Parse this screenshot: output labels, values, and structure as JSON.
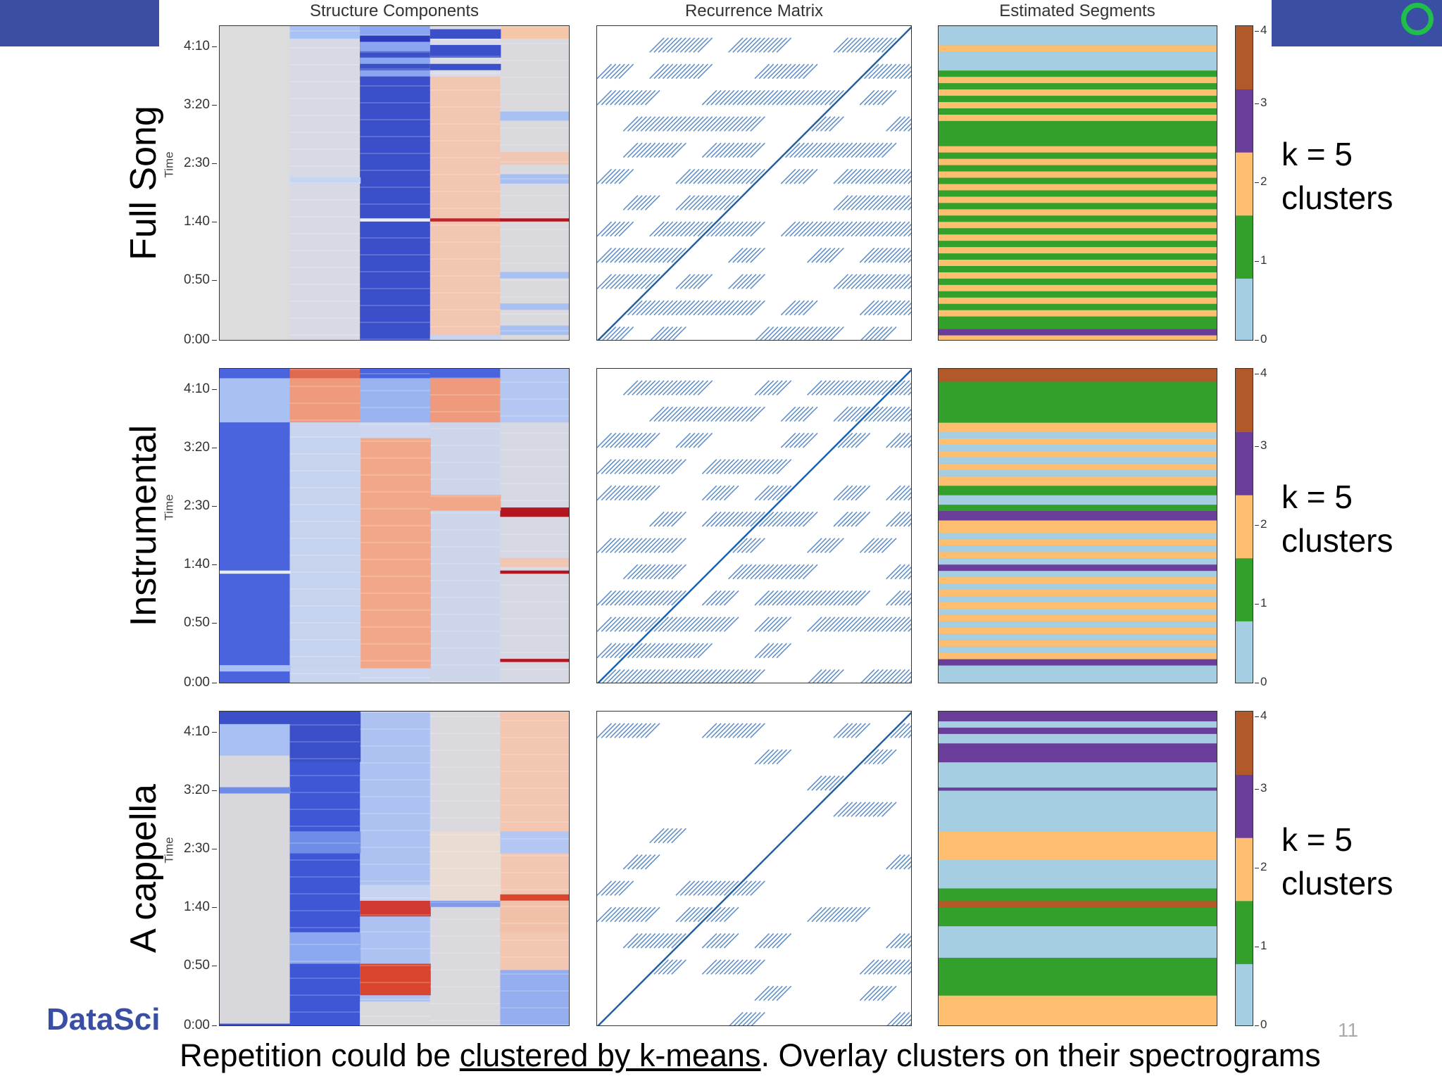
{
  "column_titles": [
    "Structure Components",
    "Recurrence Matrix",
    "Estimated Segments"
  ],
  "rows": [
    {
      "label": "Full Song",
      "time_label": "Time",
      "k_line1": "k = 5",
      "k_line2": "clusters"
    },
    {
      "label": "Instrumental",
      "time_label": "Time",
      "k_line1": "k = 5",
      "k_line2": "clusters"
    },
    {
      "label": "A cappella",
      "time_label": "Time",
      "k_line1": "k = 5",
      "k_line2": "clusters"
    }
  ],
  "time_ticks": [
    "4:10",
    "3:20",
    "2:30",
    "1:40",
    "0:50",
    "0:00"
  ],
  "colorbar_ticks": [
    "4",
    "3",
    "2",
    "1",
    "0"
  ],
  "cluster_colors": [
    "#a6cee3",
    "#33a02c",
    "#fdbf6f",
    "#6a3d9a",
    "#b15928"
  ],
  "brand": "DataSci",
  "page_number": "11",
  "caption": {
    "before": "Repetition could be ",
    "underlined": "clustered by k-means",
    "after": ". Overlay clusters on their spectrograms"
  },
  "colors": {
    "header_band": "#3a4fa3",
    "ring": "#1fbf4a"
  },
  "segments": [
    [
      [
        0,
        0.02,
        2
      ],
      [
        0.02,
        0.04,
        3
      ],
      [
        0.04,
        0.08,
        1
      ],
      [
        0.08,
        0.1,
        2
      ],
      [
        0.1,
        0.12,
        1
      ],
      [
        0.12,
        0.14,
        2
      ],
      [
        0.14,
        0.16,
        1
      ],
      [
        0.16,
        0.18,
        2
      ],
      [
        0.18,
        0.2,
        1
      ],
      [
        0.2,
        0.22,
        2
      ],
      [
        0.22,
        0.24,
        1
      ],
      [
        0.24,
        0.26,
        2
      ],
      [
        0.26,
        0.28,
        1
      ],
      [
        0.28,
        0.3,
        2
      ],
      [
        0.3,
        0.32,
        1
      ],
      [
        0.32,
        0.34,
        2
      ],
      [
        0.34,
        0.36,
        1
      ],
      [
        0.36,
        0.38,
        2
      ],
      [
        0.38,
        0.4,
        1
      ],
      [
        0.4,
        0.42,
        2
      ],
      [
        0.42,
        0.44,
        1
      ],
      [
        0.44,
        0.46,
        2
      ],
      [
        0.46,
        0.48,
        1
      ],
      [
        0.48,
        0.5,
        2
      ],
      [
        0.5,
        0.52,
        1
      ],
      [
        0.52,
        0.54,
        2
      ],
      [
        0.54,
        0.56,
        1
      ],
      [
        0.56,
        0.58,
        2
      ],
      [
        0.58,
        0.6,
        1
      ],
      [
        0.6,
        0.62,
        2
      ],
      [
        0.62,
        0.64,
        1
      ],
      [
        0.64,
        0.7,
        1
      ],
      [
        0.7,
        0.72,
        2
      ],
      [
        0.72,
        0.74,
        1
      ],
      [
        0.74,
        0.76,
        2
      ],
      [
        0.76,
        0.78,
        1
      ],
      [
        0.78,
        0.8,
        2
      ],
      [
        0.8,
        0.82,
        1
      ],
      [
        0.82,
        0.84,
        2
      ],
      [
        0.84,
        0.86,
        1
      ],
      [
        0.86,
        0.9,
        0
      ],
      [
        0.9,
        0.92,
        0
      ],
      [
        0.92,
        0.94,
        2
      ],
      [
        0.94,
        0.96,
        0
      ],
      [
        0.96,
        1,
        0
      ]
    ],
    [
      [
        0,
        0.06,
        0
      ],
      [
        0.06,
        0.08,
        3
      ],
      [
        0.08,
        0.1,
        2
      ],
      [
        0.1,
        0.12,
        0
      ],
      [
        0.12,
        0.14,
        2
      ],
      [
        0.14,
        0.16,
        0
      ],
      [
        0.16,
        0.18,
        2
      ],
      [
        0.18,
        0.2,
        0
      ],
      [
        0.2,
        0.22,
        2
      ],
      [
        0.22,
        0.24,
        0
      ],
      [
        0.24,
        0.26,
        2
      ],
      [
        0.26,
        0.28,
        0
      ],
      [
        0.28,
        0.3,
        2
      ],
      [
        0.3,
        0.32,
        0
      ],
      [
        0.32,
        0.34,
        2
      ],
      [
        0.34,
        0.36,
        0
      ],
      [
        0.36,
        0.38,
        3
      ],
      [
        0.38,
        0.4,
        0
      ],
      [
        0.4,
        0.42,
        2
      ],
      [
        0.42,
        0.44,
        0
      ],
      [
        0.44,
        0.46,
        2
      ],
      [
        0.46,
        0.48,
        0
      ],
      [
        0.48,
        0.52,
        2
      ],
      [
        0.52,
        0.55,
        3
      ],
      [
        0.55,
        0.57,
        1
      ],
      [
        0.57,
        0.6,
        0
      ],
      [
        0.6,
        0.63,
        1
      ],
      [
        0.63,
        0.66,
        2
      ],
      [
        0.66,
        0.68,
        0
      ],
      [
        0.68,
        0.7,
        2
      ],
      [
        0.7,
        0.72,
        0
      ],
      [
        0.72,
        0.74,
        2
      ],
      [
        0.74,
        0.76,
        0
      ],
      [
        0.76,
        0.78,
        2
      ],
      [
        0.78,
        0.8,
        0
      ],
      [
        0.8,
        0.83,
        2
      ],
      [
        0.83,
        0.92,
        1
      ],
      [
        0.92,
        0.96,
        1
      ],
      [
        0.96,
        1,
        4
      ]
    ],
    [
      [
        0,
        0.1,
        2
      ],
      [
        0.1,
        0.22,
        1
      ],
      [
        0.22,
        0.32,
        0
      ],
      [
        0.32,
        0.38,
        1
      ],
      [
        0.38,
        0.4,
        4
      ],
      [
        0.4,
        0.44,
        1
      ],
      [
        0.44,
        0.53,
        0
      ],
      [
        0.53,
        0.62,
        2
      ],
      [
        0.62,
        0.75,
        0
      ],
      [
        0.75,
        0.76,
        3
      ],
      [
        0.76,
        0.84,
        0
      ],
      [
        0.84,
        0.9,
        3
      ],
      [
        0.9,
        0.93,
        0
      ],
      [
        0.93,
        0.95,
        3
      ],
      [
        0.95,
        0.97,
        0
      ],
      [
        0.97,
        1,
        3
      ]
    ]
  ],
  "components": [
    {
      "base": [
        "#dcdcdc",
        "#d7d9e4",
        "#3b4fc8",
        "#f3c6b2",
        "#d9d9de"
      ],
      "bands": [
        [
          4,
          0.96,
          1,
          "#f4c7a8"
        ],
        [
          1,
          0.96,
          1,
          "#a9c2f4"
        ],
        [
          1,
          0.5,
          0.52,
          "#c6d5f2"
        ],
        [
          2,
          0.84,
          1,
          "#8aa6f0"
        ],
        [
          2,
          0.86,
          0.88,
          "#3a4fc8"
        ],
        [
          2,
          0.9,
          0.92,
          "#3a4fc8"
        ],
        [
          2,
          0.95,
          0.97,
          "#2d3bbd"
        ],
        [
          3,
          0.84,
          1,
          "#d9dbe8"
        ],
        [
          3,
          0.86,
          0.88,
          "#3a4fc8"
        ],
        [
          3,
          0.9,
          0.94,
          "#3a4fc8"
        ],
        [
          3,
          0.96,
          0.99,
          "#3a4fc8"
        ],
        [
          2,
          0.38,
          0.39,
          "#e8edfb"
        ],
        [
          3,
          0.38,
          0.39,
          "#c0252b"
        ],
        [
          4,
          0.38,
          0.39,
          "#b4151f"
        ],
        [
          3,
          0,
          0.02,
          "#c9d3ef"
        ],
        [
          4,
          0.02,
          0.05,
          "#a8c0f1"
        ],
        [
          4,
          0.1,
          0.12,
          "#a8c0f1"
        ],
        [
          4,
          0.2,
          0.22,
          "#a8c0f1"
        ],
        [
          4,
          0.5,
          0.53,
          "#a8c0f1"
        ],
        [
          4,
          0.56,
          0.6,
          "#f1c7b4"
        ],
        [
          4,
          0.7,
          0.73,
          "#a8c0f1"
        ]
      ]
    },
    {
      "base": [
        "#4a64dd",
        "#c9d4ef",
        "#ccd6ef",
        "#ccd5ea",
        "#d6d8e3"
      ],
      "bands": [
        [
          0,
          0.83,
          0.97,
          "#a9c0f2"
        ],
        [
          0,
          0.97,
          1,
          "#4a64dd"
        ],
        [
          1,
          0.83,
          0.97,
          "#ef9a7c"
        ],
        [
          1,
          0.97,
          1,
          "#e06a4f"
        ],
        [
          2,
          0.83,
          0.97,
          "#9ab4f1"
        ],
        [
          2,
          0.97,
          1,
          "#4a64dd"
        ],
        [
          3,
          0.83,
          0.97,
          "#ef9a7c"
        ],
        [
          3,
          0.97,
          1,
          "#4a64dd"
        ],
        [
          4,
          0.83,
          1,
          "#b4c7f2"
        ],
        [
          2,
          0.05,
          0.78,
          "#f2a788"
        ],
        [
          1,
          0.05,
          0.78,
          "#c5d3ef"
        ],
        [
          0,
          0.04,
          0.06,
          "#a9c0f2"
        ],
        [
          0,
          0.35,
          0.36,
          "#e8edfb"
        ],
        [
          4,
          0.53,
          0.56,
          "#b4151f"
        ],
        [
          4,
          0.35,
          0.36,
          "#b4151f"
        ],
        [
          4,
          0.07,
          0.08,
          "#b4151f"
        ],
        [
          3,
          0.55,
          0.6,
          "#f2a788"
        ],
        [
          4,
          0.37,
          0.4,
          "#f1c7b4"
        ]
      ]
    },
    {
      "base": [
        "#d8d8dc",
        "#3f56d6",
        "#aec2f2",
        "#d9d9de",
        "#f3c6b2"
      ],
      "bands": [
        [
          0,
          0.96,
          1,
          "#3a4fc8"
        ],
        [
          0,
          0.86,
          0.96,
          "#a7bff2"
        ],
        [
          0,
          0.74,
          0.76,
          "#6f8ce8"
        ],
        [
          0,
          0,
          0.01,
          "#3a4fc8"
        ],
        [
          1,
          0.84,
          1,
          "#3a4fc8"
        ],
        [
          1,
          0.55,
          0.62,
          "#6f8ce8"
        ],
        [
          1,
          0.2,
          0.3,
          "#8ca8f0"
        ],
        [
          2,
          0.35,
          0.4,
          "#cf3b33"
        ],
        [
          2,
          0.1,
          0.2,
          "#d9442f"
        ],
        [
          2,
          0.4,
          0.45,
          "#c6d4f2"
        ],
        [
          2,
          0,
          0.08,
          "#d9d9de"
        ],
        [
          3,
          0.38,
          0.4,
          "#7f9ae9"
        ],
        [
          3,
          0.4,
          0.62,
          "#eadcd2"
        ],
        [
          4,
          0.55,
          0.62,
          "#b4c7f2"
        ],
        [
          4,
          0.4,
          0.42,
          "#d9442f"
        ],
        [
          4,
          0,
          0.18,
          "#94aef0"
        ],
        [
          4,
          0.3,
          0.4,
          "#f1c0a8"
        ]
      ]
    }
  ]
}
